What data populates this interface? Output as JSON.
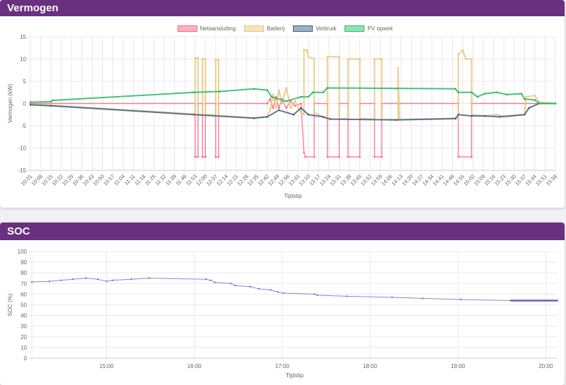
{
  "chart_data": [
    {
      "type": "line",
      "title": "Vermogen",
      "xlabel": "Tijdstip",
      "ylabel": "Vermogen (kW)",
      "ylim": [
        -15,
        15
      ],
      "yticks": [
        "15",
        "10",
        "5",
        "0",
        "-5",
        "-10",
        "-15"
      ],
      "grid": true,
      "legend_position": "top",
      "x_tick_labels": [
        "10:01",
        "10:08",
        "10:15",
        "10:22",
        "10:29",
        "10:36",
        "10:43",
        "10:50",
        "10:57",
        "11:04",
        "11:11",
        "11:18",
        "11:25",
        "11:32",
        "11:39",
        "11:46",
        "11:53",
        "12:00",
        "12:07",
        "12:14",
        "12:21",
        "12:28",
        "12:35",
        "12:42",
        "12:49",
        "12:56",
        "13:03",
        "13:10",
        "13:17",
        "13:24",
        "13:31",
        "13:38",
        "13:45",
        "13:52",
        "13:59",
        "14:06",
        "14:13",
        "14:20",
        "14:27",
        "14:34",
        "14:41",
        "14:48",
        "14:55",
        "15:02",
        "15:09",
        "15:16",
        "15:23",
        "15:30",
        "15:37",
        "15:44",
        "15:51",
        "15:58"
      ],
      "series": [
        {
          "name": "Netaansluiting",
          "color": "#ff6384",
          "fill": "rgba(255,99,132,0.5)",
          "points": [
            [
              "10:01",
              0
            ],
            [
              "11:53",
              0
            ],
            [
              "11:53",
              -12
            ],
            [
              "11:55",
              -12
            ],
            [
              "11:55",
              0
            ],
            [
              "11:58",
              0
            ],
            [
              "11:58",
              -12
            ],
            [
              "12:00",
              -12
            ],
            [
              "12:00",
              0
            ],
            [
              "12:07",
              0
            ],
            [
              "12:07",
              -12
            ],
            [
              "12:09",
              -12
            ],
            [
              "12:09",
              0
            ],
            [
              "12:42",
              0
            ],
            [
              "12:44",
              1
            ],
            [
              "12:46",
              -1
            ],
            [
              "12:48",
              1.5
            ],
            [
              "12:50",
              -1
            ],
            [
              "12:52",
              1
            ],
            [
              "12:55",
              -1
            ],
            [
              "12:58",
              0.5
            ],
            [
              "13:01",
              -0.5
            ],
            [
              "13:05",
              0
            ],
            [
              "13:07",
              -11
            ],
            [
              "13:08",
              -12
            ],
            [
              "13:14",
              -12
            ],
            [
              "13:14",
              0
            ],
            [
              "13:23",
              0
            ],
            [
              "13:23",
              -12
            ],
            [
              "13:31",
              -12
            ],
            [
              "13:31",
              0
            ],
            [
              "13:37",
              0
            ],
            [
              "13:37",
              -12
            ],
            [
              "13:45",
              -12
            ],
            [
              "13:45",
              0
            ],
            [
              "13:55",
              0
            ],
            [
              "13:55",
              -12
            ],
            [
              "14:00",
              -12
            ],
            [
              "14:00",
              0
            ],
            [
              "14:52",
              0
            ],
            [
              "14:52",
              -12
            ],
            [
              "15:01",
              -12
            ],
            [
              "15:01",
              0
            ],
            [
              "15:58",
              0
            ]
          ]
        },
        {
          "name": "Batterij",
          "color": "#e8c77e",
          "fill": "rgba(240,210,150,0.6)",
          "points": [
            [
              "10:01",
              -0.2
            ],
            [
              "10:15",
              -0.4
            ],
            [
              "11:53",
              -2.4
            ],
            [
              "11:53",
              10.2
            ],
            [
              "11:55",
              10.2
            ],
            [
              "11:55",
              -2.4
            ],
            [
              "11:58",
              -2.5
            ],
            [
              "11:58",
              10
            ],
            [
              "12:00",
              10
            ],
            [
              "12:00",
              -2.5
            ],
            [
              "12:07",
              -2.6
            ],
            [
              "12:07",
              9.8
            ],
            [
              "12:09",
              9.8
            ],
            [
              "12:09",
              -2.7
            ],
            [
              "12:33",
              -3.3
            ],
            [
              "12:42",
              -3.0
            ],
            [
              "12:44",
              -1.5
            ],
            [
              "12:46",
              2
            ],
            [
              "12:48",
              -1
            ],
            [
              "12:50",
              3
            ],
            [
              "12:52",
              0
            ],
            [
              "12:55",
              3.5
            ],
            [
              "12:58",
              -1
            ],
            [
              "13:01",
              0.5
            ],
            [
              "13:05",
              -2
            ],
            [
              "13:07",
              -2.5
            ],
            [
              "13:07",
              12
            ],
            [
              "13:09",
              12
            ],
            [
              "13:10",
              10.5
            ],
            [
              "13:14",
              10
            ],
            [
              "13:14",
              -2
            ],
            [
              "13:20",
              -3
            ],
            [
              "13:23",
              -3.5
            ],
            [
              "13:23",
              10.5
            ],
            [
              "13:31",
              10.5
            ],
            [
              "13:31",
              -3.5
            ],
            [
              "13:37",
              -3.4
            ],
            [
              "13:37",
              10
            ],
            [
              "13:45",
              10
            ],
            [
              "13:45",
              -3.4
            ],
            [
              "13:55",
              -3.5
            ],
            [
              "13:55",
              10
            ],
            [
              "14:00",
              10
            ],
            [
              "14:00",
              -3.6
            ],
            [
              "14:11",
              -3.6
            ],
            [
              "14:11",
              8
            ],
            [
              "14:12",
              -3.6
            ],
            [
              "14:52",
              -3.3
            ],
            [
              "14:52",
              11
            ],
            [
              "14:55",
              12
            ],
            [
              "14:57",
              10
            ],
            [
              "15:01",
              10
            ],
            [
              "15:01",
              -2.5
            ],
            [
              "15:10",
              -2.8
            ],
            [
              "15:18",
              -2.5
            ],
            [
              "15:25",
              -3
            ],
            [
              "15:37",
              -2.5
            ],
            [
              "15:38",
              1.5
            ],
            [
              "15:44",
              1.8
            ],
            [
              "15:47",
              0.3
            ],
            [
              "15:58",
              0
            ]
          ]
        },
        {
          "name": "Verbruik",
          "color": "#3f5f82",
          "fill": "rgba(80,110,145,0.55)",
          "points": [
            [
              "10:01",
              -0.3
            ],
            [
              "10:15",
              -0.5
            ],
            [
              "11:52",
              -2.5
            ],
            [
              "12:33",
              -3.3
            ],
            [
              "12:42",
              -3.0
            ],
            [
              "12:50",
              -1.5
            ],
            [
              "13:00",
              -2.5
            ],
            [
              "13:05",
              -1.0
            ],
            [
              "13:10",
              -2.5
            ],
            [
              "13:20",
              -3
            ],
            [
              "13:25",
              -3.5
            ],
            [
              "14:10",
              -3.7
            ],
            [
              "14:50",
              -3.4
            ],
            [
              "14:52",
              -2.5
            ],
            [
              "15:01",
              -2.8
            ],
            [
              "15:10",
              -2.8
            ],
            [
              "15:20",
              -3
            ],
            [
              "15:37",
              -2.5
            ],
            [
              "15:40",
              -1
            ],
            [
              "15:47",
              0
            ],
            [
              "15:58",
              0
            ]
          ]
        },
        {
          "name": "PV opwek",
          "color": "#27b862",
          "fill": "rgba(60,200,120,0.55)",
          "points": [
            [
              "10:01",
              0.3
            ],
            [
              "10:15",
              0.4
            ],
            [
              "10:16",
              0.7
            ],
            [
              "11:52",
              2.5
            ],
            [
              "12:10",
              2.7
            ],
            [
              "12:33",
              3.3
            ],
            [
              "12:42",
              3.0
            ],
            [
              "12:45",
              1.5
            ],
            [
              "12:55",
              0.5
            ],
            [
              "13:05",
              1.5
            ],
            [
              "13:10",
              1.5
            ],
            [
              "13:13",
              2.5
            ],
            [
              "13:20",
              2.5
            ],
            [
              "13:23",
              3.5
            ],
            [
              "14:10",
              3.4
            ],
            [
              "14:50",
              3.3
            ],
            [
              "14:52",
              2.5
            ],
            [
              "15:01",
              2.5
            ],
            [
              "15:05",
              1.5
            ],
            [
              "15:10",
              2.2
            ],
            [
              "15:18",
              2.5
            ],
            [
              "15:25",
              2
            ],
            [
              "15:35",
              2.2
            ],
            [
              "15:37",
              1.0
            ],
            [
              "15:44",
              0.8
            ],
            [
              "15:47",
              0
            ],
            [
              "15:58",
              0
            ]
          ]
        }
      ]
    },
    {
      "type": "line",
      "title": "SOC",
      "xlabel": "Tijdstip",
      "ylabel": "SOC (%)",
      "ylim": [
        0,
        100
      ],
      "xlim": [
        "14:09",
        "20:08"
      ],
      "yticks": [
        "100",
        "90",
        "80",
        "70",
        "60",
        "50",
        "40",
        "30",
        "20",
        "10",
        "0"
      ],
      "x_tick_labels": [
        "15:00",
        "16:00",
        "17:00",
        "18:00",
        "19:00",
        "20:00"
      ],
      "grid": true,
      "series": [
        {
          "name": "SOC",
          "color": "#9b7fd0",
          "points": [
            [
              "14:09",
              71.5
            ],
            [
              "14:21",
              72
            ],
            [
              "14:29",
              73
            ],
            [
              "14:37",
              74
            ],
            [
              "14:46",
              75
            ],
            [
              "14:54",
              74
            ],
            [
              "15:00",
              72
            ],
            [
              "15:04",
              73
            ],
            [
              "15:17",
              74
            ],
            [
              "15:29",
              75
            ],
            [
              "16:08",
              74
            ],
            [
              "16:11",
              73
            ],
            [
              "16:14",
              71
            ],
            [
              "16:25",
              70
            ],
            [
              "16:28",
              68
            ],
            [
              "16:38",
              67
            ],
            [
              "16:44",
              65
            ],
            [
              "16:52",
              64
            ],
            [
              "16:57",
              62
            ],
            [
              "17:01",
              61
            ],
            [
              "17:22",
              60
            ],
            [
              "17:24",
              59
            ],
            [
              "17:44",
              58
            ],
            [
              "18:15",
              57
            ],
            [
              "18:36",
              56
            ],
            [
              "19:02",
              55
            ],
            [
              "19:36",
              54
            ],
            [
              "19:43",
              54
            ],
            [
              "19:46",
              54
            ],
            [
              "19:49",
              54
            ],
            [
              "19:52",
              54
            ],
            [
              "19:55",
              54
            ],
            [
              "19:58",
              54
            ],
            [
              "20:01",
              54
            ],
            [
              "20:04",
              54
            ],
            [
              "20:08",
              54
            ]
          ]
        }
      ]
    }
  ]
}
